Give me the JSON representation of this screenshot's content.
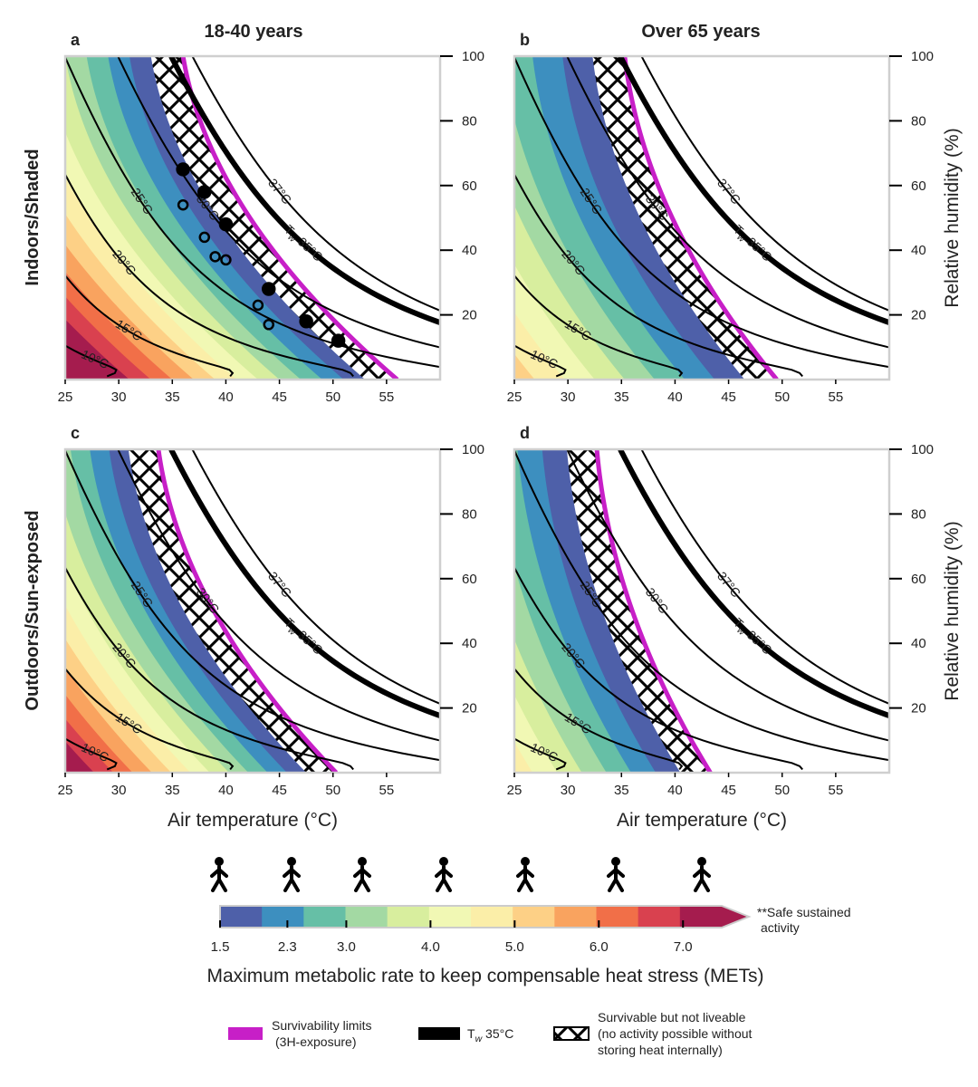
{
  "figure": {
    "column_titles": [
      "18-40 years",
      "Over 65 years"
    ],
    "row_titles": [
      "Indoors/Shaded",
      "Outdoors/Sun-exposed"
    ]
  },
  "chart_data": [
    {
      "type": "contour",
      "panel": "a",
      "xlim": [
        25,
        60
      ],
      "ylim": [
        0,
        100
      ],
      "xticks": [
        25,
        30,
        35,
        40,
        45,
        50,
        55
      ],
      "yticks": [
        20,
        40,
        60,
        80,
        100
      ],
      "isolines": [
        {
          "value": 10,
          "label": "10°C"
        },
        {
          "value": 15,
          "label": "15°C"
        },
        {
          "value": 20,
          "label": "20°C"
        },
        {
          "value": 25,
          "label": "25°C"
        },
        {
          "value": 30,
          "label": "30°C"
        },
        {
          "value": 35,
          "bold": true,
          "label": {
            "text": "T",
            "sub": "w",
            "rest": " 35°C"
          }
        },
        {
          "value": 37,
          "label": "37°C"
        }
      ],
      "points": [
        {
          "style": "filled",
          "x": [
            36,
            38,
            40,
            44,
            47.5,
            50.5
          ],
          "y": [
            65,
            58,
            48,
            28,
            18,
            12
          ]
        },
        {
          "style": "open",
          "x": [
            36,
            38,
            39,
            40,
            43,
            44
          ],
          "y": [
            54,
            44,
            38,
            37,
            23,
            17
          ]
        }
      ]
    },
    {
      "type": "contour",
      "panel": "b",
      "xlim": [
        25,
        60
      ],
      "ylim": [
        0,
        100
      ],
      "xticks": [
        25,
        30,
        35,
        40,
        45,
        50,
        55
      ],
      "yticks": [
        20,
        40,
        60,
        80,
        100
      ],
      "ylabel": "Relative humidity (%)",
      "isolines": [
        {
          "value": 10,
          "label": "10°C"
        },
        {
          "value": 15,
          "label": "15°C"
        },
        {
          "value": 20,
          "label": "20°C"
        },
        {
          "value": 25,
          "label": "25°C"
        },
        {
          "value": 30,
          "label": "30°C"
        },
        {
          "value": 35,
          "bold": true,
          "label": {
            "text": "T",
            "sub": "w",
            "rest": " 35°C"
          }
        },
        {
          "value": 37,
          "label": "37°C"
        }
      ]
    },
    {
      "type": "contour",
      "panel": "c",
      "xlim": [
        25,
        60
      ],
      "ylim": [
        0,
        100
      ],
      "xticks": [
        25,
        30,
        35,
        40,
        45,
        50,
        55
      ],
      "yticks": [
        20,
        40,
        60,
        80,
        100
      ],
      "xlabel": "Air temperature (°C)",
      "isolines": [
        {
          "value": 10,
          "label": "10°C"
        },
        {
          "value": 15,
          "label": "15°C"
        },
        {
          "value": 20,
          "label": "20°C"
        },
        {
          "value": 25,
          "label": "25°C"
        },
        {
          "value": 30,
          "label": "30°C"
        },
        {
          "value": 35,
          "bold": true,
          "label": {
            "text": "T",
            "sub": "w",
            "rest": " 35°C"
          }
        },
        {
          "value": 37,
          "label": "37°C"
        }
      ]
    },
    {
      "type": "contour",
      "panel": "d",
      "xlim": [
        25,
        60
      ],
      "ylim": [
        0,
        100
      ],
      "xticks": [
        25,
        30,
        35,
        40,
        45,
        50,
        55
      ],
      "yticks": [
        20,
        40,
        60,
        80,
        100
      ],
      "xlabel": "Air temperature (°C)",
      "ylabel": "Relative humidity (%)",
      "isolines": [
        {
          "value": 10,
          "label": "10°C"
        },
        {
          "value": 15,
          "label": "15°C"
        },
        {
          "value": 20,
          "label": "20°C"
        },
        {
          "value": 25,
          "label": "25°C"
        },
        {
          "value": 30,
          "label": "30°C"
        },
        {
          "value": 35,
          "bold": true,
          "label": {
            "text": "T",
            "sub": "w",
            "rest": " 35°C"
          }
        },
        {
          "value": 37,
          "label": "37°C"
        }
      ]
    }
  ],
  "colorbar": {
    "colors": [
      "#4e60a9",
      "#3d8fbf",
      "#66bfa6",
      "#a3d9a3",
      "#d8ee9e",
      "#f1f8b4",
      "#fbeea8",
      "#fdd086",
      "#f9a35f",
      "#f16f48",
      "#d9414f",
      "#a51c4e"
    ],
    "clim": [
      1.5,
      7.46
    ],
    "ticks": [
      1.5,
      2.3,
      {
        "value": 3,
        "label": "3.0"
      },
      {
        "value": 4,
        "label": "4.0"
      },
      {
        "value": 5,
        "label": "5.0"
      },
      {
        "value": 6,
        "label": "6.0"
      },
      {
        "value": 7,
        "label": "7.0"
      }
    ],
    "label": "Maximum metabolic rate to keep compensable heat stress (METs)",
    "note": [
      "**Safe sustained",
      "activity"
    ]
  },
  "legend": {
    "limit": {
      "color": "#c71fc7",
      "label": [
        "Survivability limits",
        "(3H-exposure)"
      ]
    },
    "tw": {
      "color": "#000000",
      "label": {
        "text": "T",
        "sub": "w",
        "rest": " 35°C"
      }
    },
    "hatch": {
      "label": [
        "Survivable but not liveable",
        "(no activity possible without",
        "storing heat internally)"
      ]
    }
  }
}
